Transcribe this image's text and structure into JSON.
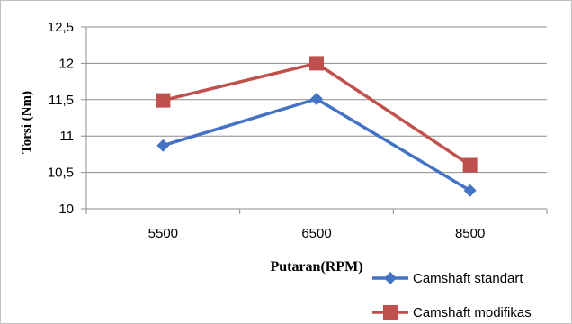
{
  "chart_data": {
    "type": "line",
    "categories": [
      "5500",
      "6500",
      "8500"
    ],
    "series": [
      {
        "name": "Camshaft standart",
        "values": [
          10.87,
          11.51,
          10.25
        ],
        "color": "#4472C4",
        "marker": "diamond"
      },
      {
        "name": "Camshaft modifikas",
        "values": [
          11.49,
          12.0,
          10.6
        ],
        "color": "#C0504D",
        "marker": "square"
      }
    ],
    "xlabel": "Putaran(RPM)",
    "ylabel": "Torsi (Nm)",
    "ylim": [
      10,
      12.5
    ],
    "yticks": [
      "10",
      "10,5",
      "11",
      "11,5",
      "12",
      "12,5"
    ],
    "grid": true,
    "legend": "bottom-right"
  }
}
